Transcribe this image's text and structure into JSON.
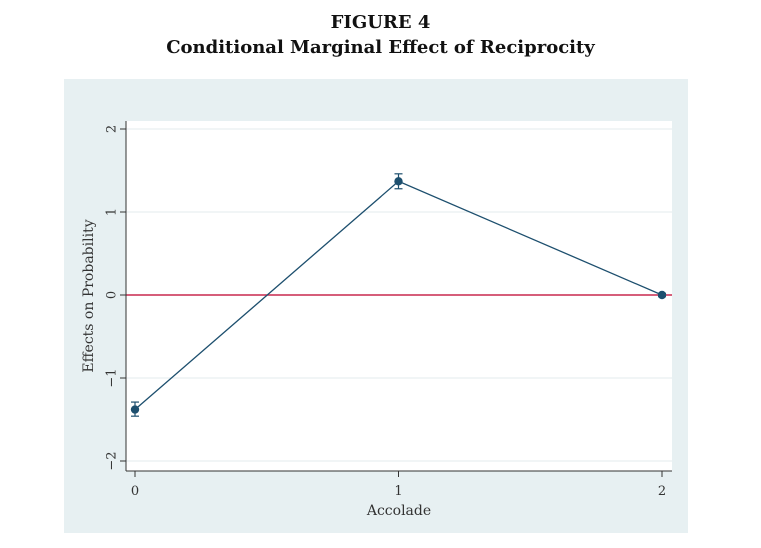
{
  "figure": {
    "label": "FIGURE 4",
    "caption": "Conditional Marginal Effect of Reciprocity"
  },
  "chart_data": {
    "type": "line",
    "title": "Conditional Marginal Effect of Reciprocity",
    "xlabel": "Accolade",
    "ylabel": "Effects on Probability",
    "x_ticks": [
      0,
      1,
      2
    ],
    "y_ticks": [
      -2,
      -1,
      0,
      1,
      2
    ],
    "y_tick_labels": [
      "−2",
      "−1",
      "0",
      "1",
      "2"
    ],
    "xlim": [
      0,
      2
    ],
    "ylim": [
      -2.05,
      2.1
    ],
    "grid": true,
    "series": [
      {
        "x": [
          0,
          1,
          2
        ],
        "values": [
          -1.38,
          1.37,
          0.0
        ],
        "ci_low": [
          -1.46,
          1.28,
          -0.02
        ],
        "ci_high": [
          -1.29,
          1.46,
          0.02
        ]
      }
    ],
    "reference_line": {
      "y": 0,
      "color": "#c8284e"
    },
    "colors": {
      "outer_background": "#e7f0f2",
      "plot_background": "#ffffff",
      "series": "#1d4f6e",
      "grid": "#e3ebee"
    }
  }
}
